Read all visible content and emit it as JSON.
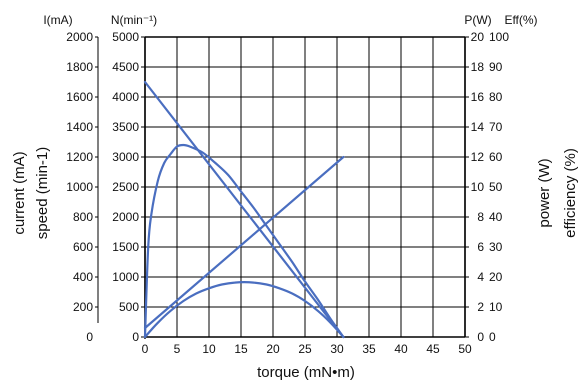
{
  "chart_data": {
    "type": "line",
    "xlabel": "torque (mN•m)",
    "xlim": [
      0,
      50
    ],
    "x_ticks": [
      "0",
      "5",
      "10",
      "15",
      "20",
      "25",
      "30",
      "35",
      "40",
      "45",
      "50"
    ],
    "axes": {
      "current": {
        "header": "I(mA)",
        "label": "current (mA)",
        "ticks": [
          "2000",
          "1800",
          "1600",
          "1400",
          "1200",
          "1000",
          "800",
          "600",
          "400",
          "200",
          "0"
        ],
        "range": [
          0,
          2000
        ]
      },
      "speed": {
        "header": "N(min⁻¹)",
        "label": "speed (min-1)",
        "ticks": [
          "5000",
          "4500",
          "4000",
          "3500",
          "3000",
          "2500",
          "2000",
          "1500",
          "1000",
          "500",
          "0"
        ],
        "range": [
          0,
          5000
        ]
      },
      "power": {
        "header": "P(W)",
        "label": "power (W)",
        "ticks": [
          "20",
          "18",
          "16",
          "14",
          "12",
          "10",
          "8",
          "6",
          "4",
          "2",
          "0"
        ],
        "range": [
          0,
          20
        ]
      },
      "efficiency": {
        "header": "Eff(%)",
        "label": "efficiency (%)",
        "ticks": [
          "100",
          "90",
          "80",
          "70",
          "60",
          "50",
          "40",
          "30",
          "20",
          "10",
          "0"
        ],
        "range": [
          0,
          100
        ]
      }
    },
    "series": [
      {
        "axis": "speed",
        "x": [
          0,
          31
        ],
        "values": [
          4250,
          0
        ]
      },
      {
        "axis": "current",
        "x": [
          0,
          31
        ],
        "values": [
          60,
          1200
        ]
      },
      {
        "axis": "efficiency",
        "x": [
          0,
          0.5,
          1,
          2,
          3,
          4,
          5,
          6,
          7,
          9,
          11,
          13,
          15,
          17,
          19,
          21,
          23,
          25,
          27,
          29,
          30,
          31
        ],
        "values": [
          0,
          30,
          41,
          52,
          58,
          61,
          63.5,
          64,
          63.5,
          61.5,
          58,
          54,
          48.5,
          43,
          37,
          31,
          25,
          18.5,
          12.5,
          6,
          3,
          0
        ]
      },
      {
        "axis": "power",
        "x": [
          0,
          2,
          4,
          6,
          8,
          10,
          12,
          14,
          15.5,
          17,
          19,
          21,
          23,
          25,
          27,
          29,
          31
        ],
        "values": [
          0,
          0.95,
          1.75,
          2.4,
          2.9,
          3.25,
          3.5,
          3.63,
          3.66,
          3.63,
          3.5,
          3.25,
          2.9,
          2.4,
          1.75,
          0.95,
          0
        ]
      }
    ],
    "line_color": "#4a6ec0",
    "grid": true
  }
}
